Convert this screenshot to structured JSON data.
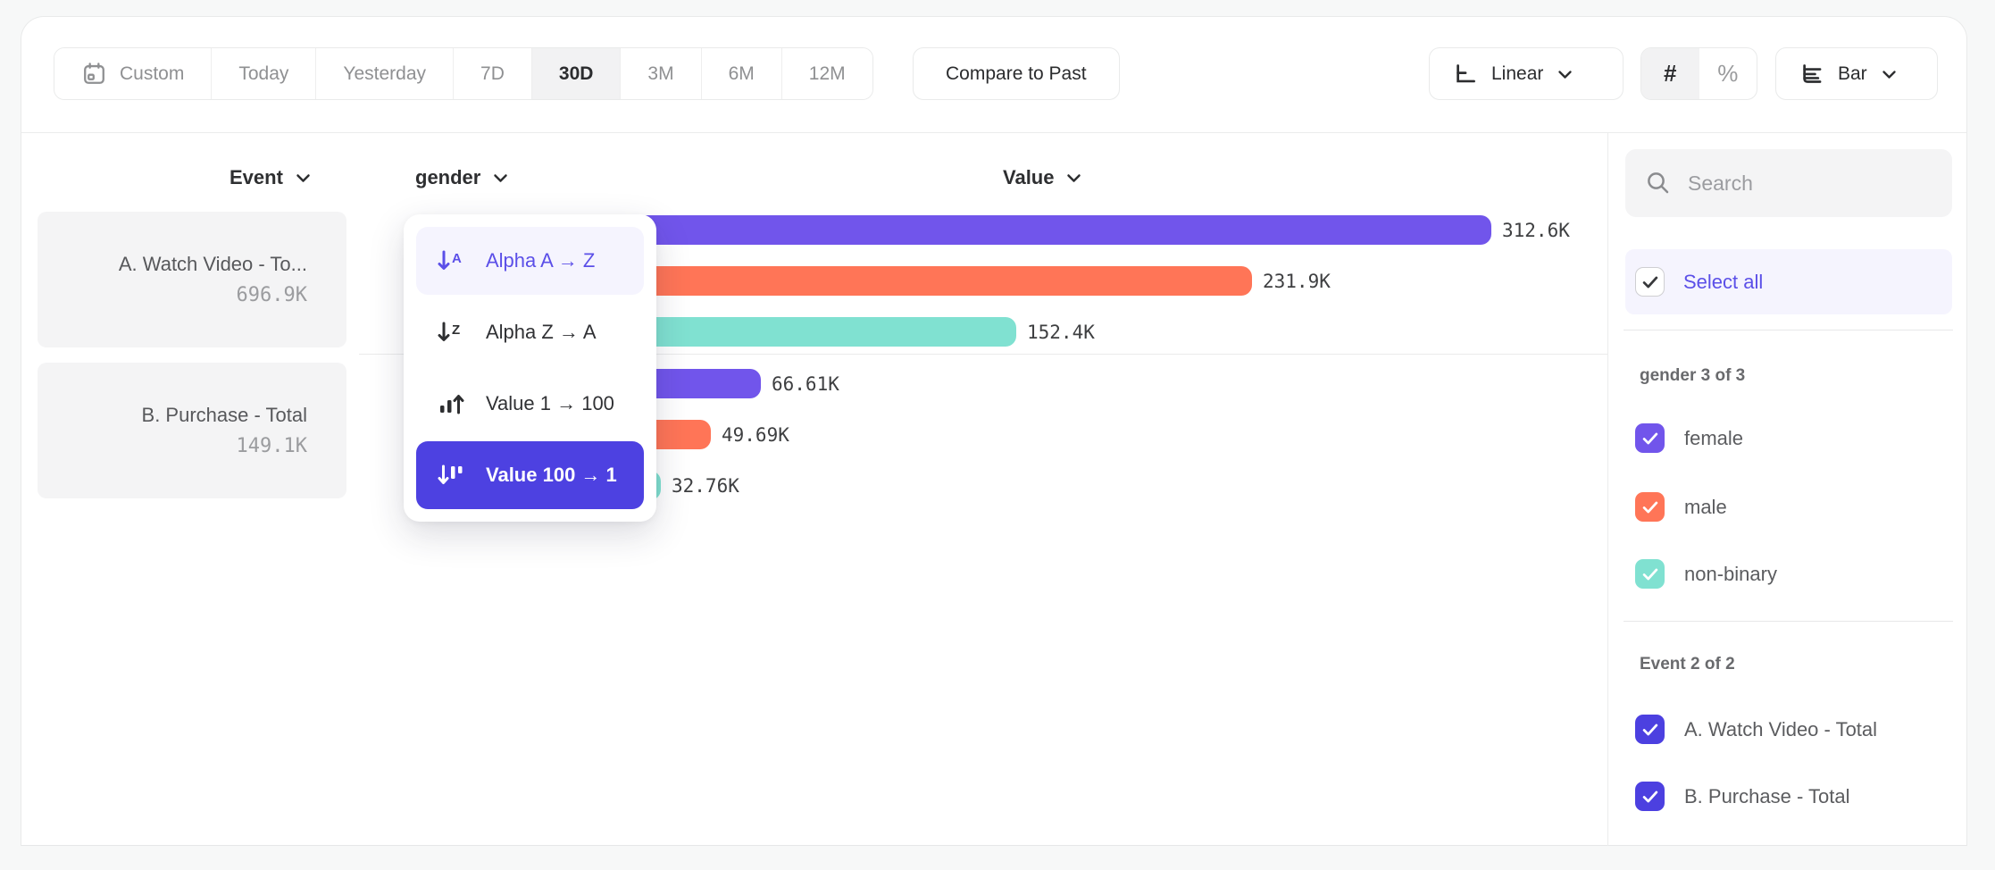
{
  "toolbar": {
    "date_ranges": [
      {
        "label": "Custom",
        "active": false,
        "has_calendar_icon": true
      },
      {
        "label": "Today",
        "active": false
      },
      {
        "label": "Yesterday",
        "active": false
      },
      {
        "label": "7D",
        "active": false
      },
      {
        "label": "30D",
        "active": true
      },
      {
        "label": "3M",
        "active": false
      },
      {
        "label": "6M",
        "active": false
      },
      {
        "label": "12M",
        "active": false
      }
    ],
    "compare_label": "Compare to Past",
    "scale_selector": {
      "label": "Linear"
    },
    "value_format_toggle": {
      "count_symbol": "#",
      "percent_symbol": "%",
      "selected": "#"
    },
    "chart_type_selector": {
      "label": "Bar"
    }
  },
  "chart_data": {
    "type": "bar",
    "orientation": "horizontal",
    "group_header": "Event",
    "breakdown_header": "gender",
    "value_header": "Value",
    "legend_position": "right-sidebar",
    "grid": false,
    "value_axis_max": 350000,
    "groups": [
      {
        "event": "A. Watch Video - Total",
        "event_display": "A. Watch Video - To...",
        "total_display": "696.9K",
        "bars": [
          {
            "category": "female",
            "value": 312600,
            "display": "312.6K",
            "color": "#7155EB"
          },
          {
            "category": "male",
            "value": 231900,
            "display": "231.9K",
            "color": "#FF7557"
          },
          {
            "category": "non-binary",
            "value": 152400,
            "display": "152.4K",
            "color": "#80E1D1"
          }
        ]
      },
      {
        "event": "B. Purchase - Total",
        "event_display": "B. Purchase - Total",
        "total_display": "149.1K",
        "bars": [
          {
            "category": "female",
            "value": 66610,
            "display": "66.61K",
            "color": "#7155EB"
          },
          {
            "category": "male",
            "value": 49690,
            "display": "49.69K",
            "color": "#FF7557"
          },
          {
            "category": "non-binary",
            "value": 32760,
            "display": "32.76K",
            "color": "#80E1D1"
          }
        ]
      }
    ]
  },
  "sort_menu": {
    "items": [
      {
        "label": "Alpha A → Z",
        "state": "hovered"
      },
      {
        "label": "Alpha Z → A",
        "state": "normal"
      },
      {
        "label": "Value 1 → 100",
        "state": "normal"
      },
      {
        "label": "Value 100 → 1",
        "state": "selected"
      }
    ]
  },
  "sidebar": {
    "search_placeholder": "Search",
    "select_all_label": "Select all",
    "groups": [
      {
        "title": "gender 3 of 3",
        "items": [
          {
            "label": "female",
            "checked": true,
            "color": "#7155EB"
          },
          {
            "label": "male",
            "checked": true,
            "color": "#FF7557"
          },
          {
            "label": "non-binary",
            "checked": true,
            "color": "#80E1D1"
          }
        ]
      },
      {
        "title": "Event 2 of 2",
        "items": [
          {
            "label": "A. Watch Video - Total",
            "checked": true,
            "color": "#4C40E0"
          },
          {
            "label": "B. Purchase - Total",
            "checked": true,
            "color": "#4C40E0"
          }
        ]
      }
    ]
  },
  "colors": {
    "accent_indigo": "#4D41E1",
    "accent_purple_text": "#5B4FE8",
    "hover_lavender": "#F5F4FE",
    "series_purple": "#7155EB",
    "series_orange": "#FF7557",
    "series_teal": "#80E1D1"
  }
}
